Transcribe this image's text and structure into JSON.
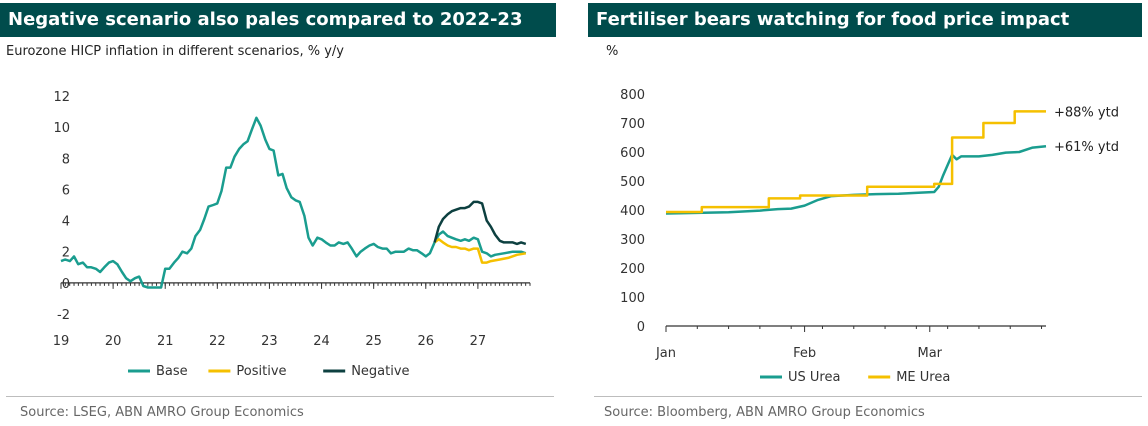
{
  "left_panel": {
    "title": "Negative scenario also pales compared to 2022-23",
    "subtitle": "Eurozone HICP inflation in different scenarios, % y/y",
    "source": "Source: LSEG, ABN AMRO Group Economics"
  },
  "right_panel": {
    "title": "Fertiliser bears watching for food price impact",
    "subtitle": "%",
    "source": "Source: Bloomberg, ABN AMRO Group Economics"
  },
  "colors": {
    "teal": "#1a9d8f",
    "yellow": "#f5c000",
    "dark_green": "#0d4040",
    "title_bg": "#004c4c"
  },
  "chart_data": [
    {
      "type": "line",
      "title": "Negative scenario also pales compared to 2022-23",
      "ylabel": "Eurozone HICP inflation in different scenarios, % y/y",
      "ylim": [
        -2,
        12
      ],
      "yticks": [
        -2,
        0,
        2,
        4,
        6,
        8,
        10,
        12
      ],
      "xlim": [
        2019.0,
        2028.0
      ],
      "xticks": [
        {
          "value": 2019,
          "label": "19"
        },
        {
          "value": 2020,
          "label": "20"
        },
        {
          "value": 2021,
          "label": "21"
        },
        {
          "value": 2022,
          "label": "22"
        },
        {
          "value": 2023,
          "label": "23"
        },
        {
          "value": 2024,
          "label": "24"
        },
        {
          "value": 2025,
          "label": "25"
        },
        {
          "value": 2026,
          "label": "26"
        },
        {
          "value": 2027,
          "label": "27"
        }
      ],
      "legend_position": "bottom",
      "series": [
        {
          "name": "Base",
          "color": "#1a9d8f",
          "points": [
            [
              2019.0,
              1.4
            ],
            [
              2019.08,
              1.5
            ],
            [
              2019.17,
              1.4
            ],
            [
              2019.25,
              1.7
            ],
            [
              2019.33,
              1.2
            ],
            [
              2019.42,
              1.3
            ],
            [
              2019.5,
              1.0
            ],
            [
              2019.58,
              1.0
            ],
            [
              2019.67,
              0.9
            ],
            [
              2019.75,
              0.7
            ],
            [
              2019.83,
              1.0
            ],
            [
              2019.92,
              1.3
            ],
            [
              2020.0,
              1.4
            ],
            [
              2020.08,
              1.2
            ],
            [
              2020.17,
              0.7
            ],
            [
              2020.25,
              0.3
            ],
            [
              2020.33,
              0.1
            ],
            [
              2020.42,
              0.3
            ],
            [
              2020.5,
              0.4
            ],
            [
              2020.58,
              -0.2
            ],
            [
              2020.67,
              -0.3
            ],
            [
              2020.75,
              -0.3
            ],
            [
              2020.83,
              -0.3
            ],
            [
              2020.92,
              -0.3
            ],
            [
              2021.0,
              0.9
            ],
            [
              2021.08,
              0.9
            ],
            [
              2021.17,
              1.3
            ],
            [
              2021.25,
              1.6
            ],
            [
              2021.33,
              2.0
            ],
            [
              2021.42,
              1.9
            ],
            [
              2021.5,
              2.2
            ],
            [
              2021.58,
              3.0
            ],
            [
              2021.67,
              3.4
            ],
            [
              2021.75,
              4.1
            ],
            [
              2021.83,
              4.9
            ],
            [
              2021.92,
              5.0
            ],
            [
              2022.0,
              5.1
            ],
            [
              2022.08,
              5.9
            ],
            [
              2022.17,
              7.4
            ],
            [
              2022.25,
              7.4
            ],
            [
              2022.33,
              8.1
            ],
            [
              2022.42,
              8.6
            ],
            [
              2022.5,
              8.9
            ],
            [
              2022.58,
              9.1
            ],
            [
              2022.67,
              9.9
            ],
            [
              2022.75,
              10.6
            ],
            [
              2022.83,
              10.1
            ],
            [
              2022.92,
              9.2
            ],
            [
              2023.0,
              8.6
            ],
            [
              2023.08,
              8.5
            ],
            [
              2023.17,
              6.9
            ],
            [
              2023.25,
              7.0
            ],
            [
              2023.33,
              6.1
            ],
            [
              2023.42,
              5.5
            ],
            [
              2023.5,
              5.3
            ],
            [
              2023.58,
              5.2
            ],
            [
              2023.67,
              4.3
            ],
            [
              2023.75,
              2.9
            ],
            [
              2023.83,
              2.4
            ],
            [
              2023.92,
              2.9
            ],
            [
              2024.0,
              2.8
            ],
            [
              2024.08,
              2.6
            ],
            [
              2024.17,
              2.4
            ],
            [
              2024.25,
              2.4
            ],
            [
              2024.33,
              2.6
            ],
            [
              2024.42,
              2.5
            ],
            [
              2024.5,
              2.6
            ],
            [
              2024.58,
              2.2
            ],
            [
              2024.67,
              1.7
            ],
            [
              2024.75,
              2.0
            ],
            [
              2024.83,
              2.2
            ],
            [
              2024.92,
              2.4
            ],
            [
              2025.0,
              2.5
            ],
            [
              2025.08,
              2.3
            ],
            [
              2025.17,
              2.2
            ],
            [
              2025.25,
              2.2
            ],
            [
              2025.33,
              1.9
            ],
            [
              2025.42,
              2.0
            ],
            [
              2025.5,
              2.0
            ],
            [
              2025.58,
              2.0
            ],
            [
              2025.67,
              2.2
            ],
            [
              2025.75,
              2.1
            ],
            [
              2025.83,
              2.1
            ],
            [
              2025.92,
              1.9
            ],
            [
              2026.0,
              1.7
            ],
            [
              2026.08,
              1.9
            ],
            [
              2026.17,
              2.6
            ],
            [
              2026.25,
              3.1
            ],
            [
              2026.33,
              3.3
            ],
            [
              2026.42,
              3.0
            ],
            [
              2026.5,
              2.9
            ],
            [
              2026.58,
              2.8
            ],
            [
              2026.67,
              2.7
            ],
            [
              2026.75,
              2.8
            ],
            [
              2026.83,
              2.7
            ],
            [
              2026.92,
              2.9
            ],
            [
              2027.0,
              2.8
            ],
            [
              2027.08,
              2.0
            ],
            [
              2027.17,
              1.9
            ],
            [
              2027.25,
              1.7
            ],
            [
              2027.33,
              1.8
            ],
            [
              2027.5,
              1.9
            ],
            [
              2027.67,
              2.0
            ],
            [
              2027.83,
              2.0
            ],
            [
              2027.92,
              1.9
            ]
          ]
        },
        {
          "name": "Positive",
          "color": "#f5c000",
          "points": [
            [
              2026.17,
              2.6
            ],
            [
              2026.25,
              2.8
            ],
            [
              2026.33,
              2.6
            ],
            [
              2026.42,
              2.4
            ],
            [
              2026.5,
              2.3
            ],
            [
              2026.58,
              2.3
            ],
            [
              2026.67,
              2.2
            ],
            [
              2026.75,
              2.2
            ],
            [
              2026.83,
              2.1
            ],
            [
              2026.92,
              2.2
            ],
            [
              2027.0,
              2.2
            ],
            [
              2027.08,
              1.3
            ],
            [
              2027.17,
              1.3
            ],
            [
              2027.25,
              1.4
            ],
            [
              2027.42,
              1.5
            ],
            [
              2027.58,
              1.6
            ],
            [
              2027.75,
              1.8
            ],
            [
              2027.92,
              1.9
            ]
          ]
        },
        {
          "name": "Negative",
          "color": "#0d4040",
          "points": [
            [
              2026.17,
              2.6
            ],
            [
              2026.25,
              3.6
            ],
            [
              2026.33,
              4.1
            ],
            [
              2026.42,
              4.4
            ],
            [
              2026.5,
              4.6
            ],
            [
              2026.58,
              4.7
            ],
            [
              2026.67,
              4.8
            ],
            [
              2026.75,
              4.8
            ],
            [
              2026.83,
              4.9
            ],
            [
              2026.92,
              5.2
            ],
            [
              2027.0,
              5.2
            ],
            [
              2027.08,
              5.1
            ],
            [
              2027.17,
              4.0
            ],
            [
              2027.25,
              3.6
            ],
            [
              2027.33,
              3.1
            ],
            [
              2027.42,
              2.7
            ],
            [
              2027.5,
              2.6
            ],
            [
              2027.58,
              2.6
            ],
            [
              2027.67,
              2.6
            ],
            [
              2027.75,
              2.5
            ],
            [
              2027.83,
              2.6
            ],
            [
              2027.92,
              2.5
            ]
          ]
        }
      ]
    },
    {
      "type": "line",
      "title": "Fertiliser bears watching for food price impact",
      "ylabel": "%",
      "ylim": [
        0,
        800
      ],
      "yticks": [
        0,
        100,
        200,
        300,
        400,
        500,
        600,
        700,
        800
      ],
      "xlim": [
        0,
        85
      ],
      "xticks": [
        {
          "value": 0,
          "label": "Jan"
        },
        {
          "value": 31,
          "label": "Feb"
        },
        {
          "value": 59,
          "label": "Mar"
        }
      ],
      "legend_position": "bottom",
      "annotations": [
        {
          "text": "+88% ytd",
          "x": 85,
          "y": 740
        },
        {
          "text": "+61% ytd",
          "x": 85,
          "y": 620
        }
      ],
      "series": [
        {
          "name": "US Urea",
          "color": "#1a9d8f",
          "points": [
            [
              0,
              388
            ],
            [
              7,
              390
            ],
            [
              14,
              392
            ],
            [
              21,
              398
            ],
            [
              25,
              403
            ],
            [
              28,
              405
            ],
            [
              31,
              415
            ],
            [
              34,
              435
            ],
            [
              37,
              448
            ],
            [
              42,
              452
            ],
            [
              47,
              455
            ],
            [
              52,
              456
            ],
            [
              57,
              460
            ],
            [
              60,
              462
            ],
            [
              61,
              480
            ],
            [
              62,
              520
            ],
            [
              63,
              555
            ],
            [
              64,
              590
            ],
            [
              65,
              575
            ],
            [
              66,
              585
            ],
            [
              70,
              585
            ],
            [
              73,
              590
            ],
            [
              76,
              598
            ],
            [
              79,
              600
            ],
            [
              82,
              615
            ],
            [
              85,
              620
            ]
          ]
        },
        {
          "name": "ME Urea",
          "color": "#f5c000",
          "points": [
            [
              0,
              393
            ],
            [
              8,
              393
            ],
            [
              8,
              410
            ],
            [
              23,
              410
            ],
            [
              23,
              440
            ],
            [
              30,
              440
            ],
            [
              30,
              450
            ],
            [
              45,
              450
            ],
            [
              45,
              480
            ],
            [
              60,
              480
            ],
            [
              60,
              490
            ],
            [
              64,
              490
            ],
            [
              64,
              650
            ],
            [
              71,
              650
            ],
            [
              71,
              700
            ],
            [
              78,
              700
            ],
            [
              78,
              740
            ],
            [
              85,
              740
            ]
          ]
        }
      ]
    }
  ]
}
